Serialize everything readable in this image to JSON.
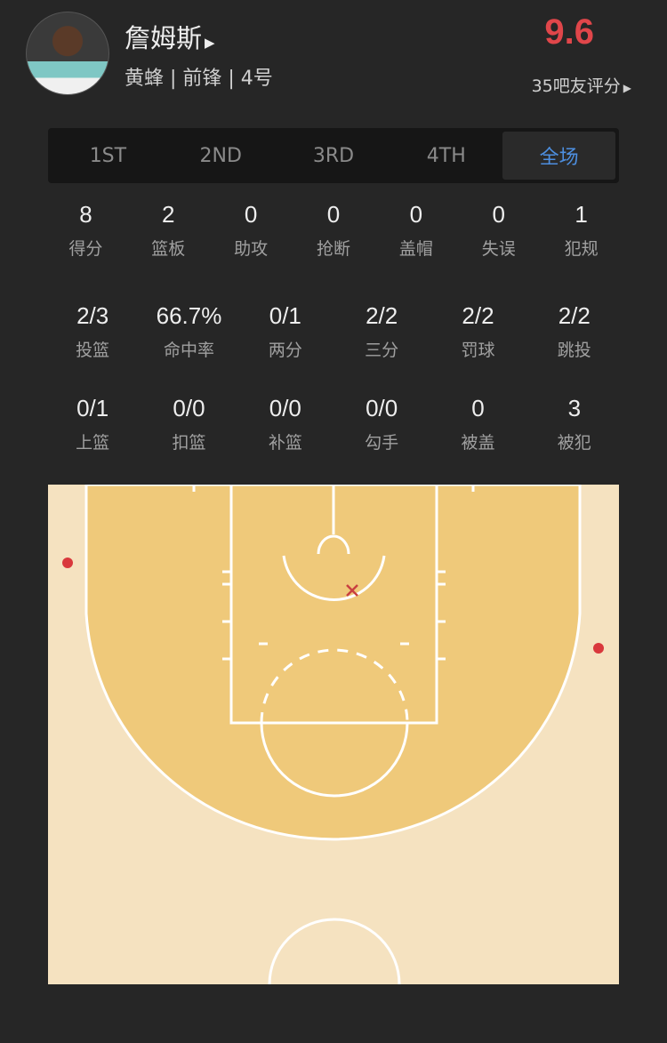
{
  "player": {
    "name": "詹姆斯",
    "info": "黄蜂 | 前锋 | 4号",
    "rating": "9.6",
    "rating_label": "35吧友评分"
  },
  "tabs": [
    {
      "label": "1ST"
    },
    {
      "label": "2ND"
    },
    {
      "label": "3RD"
    },
    {
      "label": "4TH"
    },
    {
      "label": "全场",
      "active": true
    }
  ],
  "stats_basic": [
    {
      "value": "8",
      "label": "得分"
    },
    {
      "value": "2",
      "label": "篮板"
    },
    {
      "value": "0",
      "label": "助攻"
    },
    {
      "value": "0",
      "label": "抢断"
    },
    {
      "value": "0",
      "label": "盖帽"
    },
    {
      "value": "0",
      "label": "失误"
    },
    {
      "value": "1",
      "label": "犯规"
    }
  ],
  "stats_shooting": [
    {
      "value": "2/3",
      "label": "投篮"
    },
    {
      "value": "66.7%",
      "label": "命中率"
    },
    {
      "value": "0/1",
      "label": "两分"
    },
    {
      "value": "2/2",
      "label": "三分"
    },
    {
      "value": "2/2",
      "label": "罚球"
    },
    {
      "value": "2/2",
      "label": "跳投"
    }
  ],
  "stats_types": [
    {
      "value": "0/1",
      "label": "上篮"
    },
    {
      "value": "0/0",
      "label": "扣篮"
    },
    {
      "value": "0/0",
      "label": "补篮"
    },
    {
      "value": "0/0",
      "label": "勾手"
    },
    {
      "value": "0",
      "label": "被盖"
    },
    {
      "value": "3",
      "label": "被犯"
    }
  ],
  "shot_chart": {
    "shots": [
      {
        "result": "made",
        "zone": "left-corner-three"
      },
      {
        "result": "made",
        "zone": "right-wing-three"
      },
      {
        "result": "missed",
        "zone": "paint"
      }
    ],
    "colors": {
      "made": "#d9383c",
      "missed": "#c94040",
      "court_outer": "#f5e2c0",
      "court_inner": "#efc97a",
      "lines": "#ffffff"
    }
  },
  "colors": {
    "accent": "#4d8fe0",
    "rating": "#e0464a",
    "background": "#262626"
  }
}
